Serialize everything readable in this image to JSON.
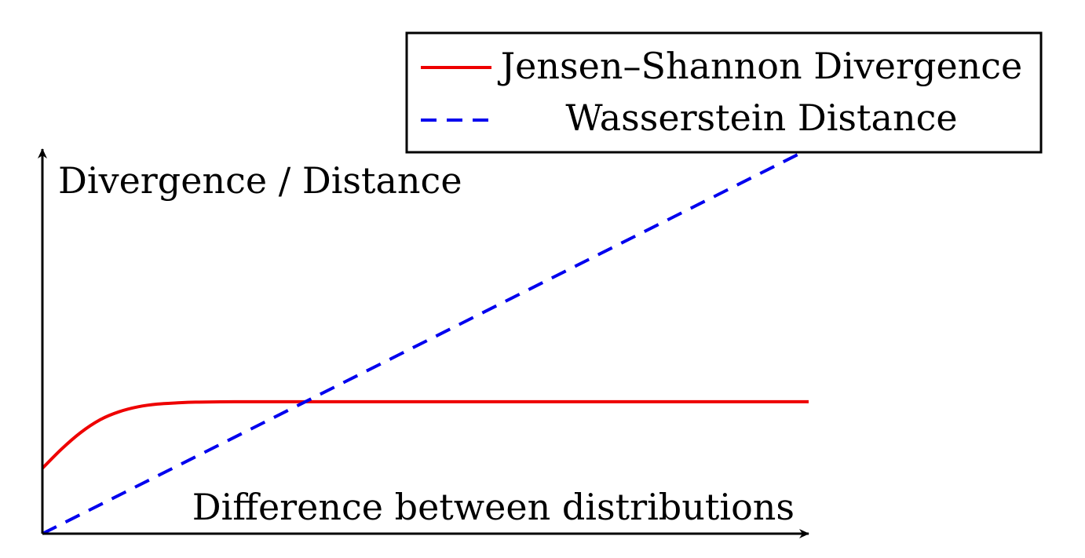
{
  "chart_data": {
    "type": "line",
    "title": "",
    "xlabel": "Difference between distributions",
    "ylabel": "Divergence / Distance",
    "xlim": [
      0,
      10
    ],
    "ylim": [
      0,
      10
    ],
    "grid": false,
    "ticks": false,
    "legend_position": "top-right",
    "series": [
      {
        "name": "Jensen–Shannon Divergence",
        "color": "#ee0000",
        "style": "solid",
        "x": [
          0,
          0.25,
          0.5,
          0.75,
          1.0,
          1.25,
          1.5,
          1.75,
          2.0,
          2.5,
          3.0,
          3.5,
          4.0,
          5.0,
          6.0,
          7.0,
          8.0,
          9.0,
          10.0
        ],
        "y": [
          1.7,
          2.2,
          2.63,
          2.96,
          3.17,
          3.3,
          3.37,
          3.4,
          3.42,
          3.43,
          3.43,
          3.43,
          3.43,
          3.43,
          3.43,
          3.43,
          3.43,
          3.43,
          3.43
        ]
      },
      {
        "name": "Wasserstein Distance",
        "color": "#0000ee",
        "style": "dashed",
        "x": [
          0,
          10
        ],
        "y": [
          0,
          10
        ]
      }
    ]
  }
}
